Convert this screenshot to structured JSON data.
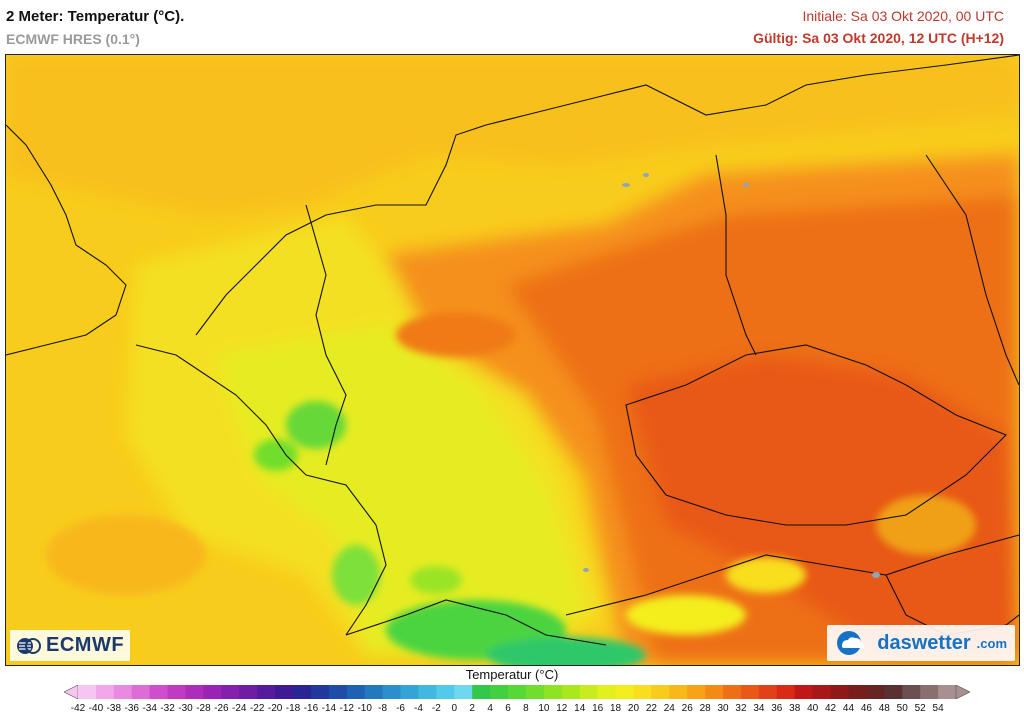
{
  "header": {
    "title": "2 Meter: Temperatur (°C).",
    "model": "ECMWF HRES (0.1°)",
    "initial": "Initiale: Sa 03 Okt 2020, 00 UTC",
    "valid": "Gültig: Sa 03 Okt 2020, 12 UTC (H+12)"
  },
  "logos": {
    "ecmwf": "ECMWF",
    "daswetter": "daswetter",
    "daswetter_domain": ".com"
  },
  "legend": {
    "title": "Temperatur (°C)",
    "ticks": [
      "-42",
      "-40",
      "-38",
      "-36",
      "-34",
      "-32",
      "-30",
      "-28",
      "-26",
      "-24",
      "-22",
      "-20",
      "-18",
      "-16",
      "-14",
      "-12",
      "-10",
      "-8",
      "-6",
      "-4",
      "-2",
      "0",
      "2",
      "4",
      "6",
      "8",
      "10",
      "12",
      "14",
      "16",
      "18",
      "20",
      "22",
      "24",
      "26",
      "28",
      "30",
      "32",
      "34",
      "36",
      "38",
      "40",
      "42",
      "44",
      "46",
      "48",
      "50",
      "52",
      "54"
    ],
    "colors": [
      "#f7c6f0",
      "#f0a8ea",
      "#e88ae0",
      "#de6cd6",
      "#d04ecc",
      "#c03ac4",
      "#ae2cbc",
      "#9a22b4",
      "#8420ac",
      "#6e1ea4",
      "#561a9c",
      "#401a94",
      "#2a2494",
      "#22389c",
      "#1e4ca8",
      "#1e62b4",
      "#2478c0",
      "#2c8ecc",
      "#34a4d8",
      "#40b8e2",
      "#54caea",
      "#6ed8ee",
      "#32c84a",
      "#40d040",
      "#56d836",
      "#70de2c",
      "#8ee424",
      "#aae81e",
      "#c8ec1e",
      "#e2f01e",
      "#f4ee1e",
      "#f8de1e",
      "#f8cc1c",
      "#f8b81a",
      "#f8a218",
      "#f48a16",
      "#ee7016",
      "#e85816",
      "#e24016",
      "#d82a16",
      "#c01818",
      "#a81818",
      "#901818",
      "#781c1c",
      "#662424",
      "#5a3030",
      "#6a5050",
      "#887070",
      "#a89090"
    ]
  }
}
